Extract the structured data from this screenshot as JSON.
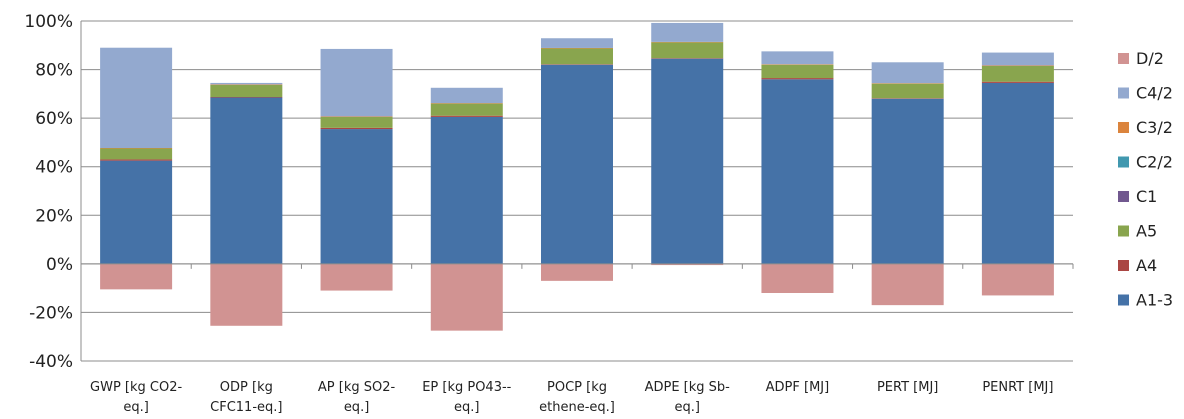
{
  "chart_data": {
    "type": "bar",
    "stacked": true,
    "categories": [
      [
        "GWP [kg CO2-",
        "eq.]"
      ],
      [
        "ODP [kg",
        "CFC11-eq.]"
      ],
      [
        "AP [kg SO2-",
        "eq.]"
      ],
      [
        "EP [kg PO43--",
        "eq.]"
      ],
      [
        "POCP [kg",
        "ethene-eq.]"
      ],
      [
        "ADPE [kg Sb-",
        "eq.]"
      ],
      [
        "ADPF [MJ]"
      ],
      [
        "PERT [MJ]"
      ],
      [
        "PENRT [MJ]"
      ]
    ],
    "ylim": [
      -40,
      100
    ],
    "yticks": [
      -40,
      -20,
      0,
      20,
      40,
      60,
      80,
      100
    ],
    "ytick_labels": [
      "-40%",
      "-20%",
      "0%",
      "20%",
      "40%",
      "60%",
      "80%",
      "100%"
    ],
    "series": [
      {
        "name": "A1-3",
        "color": "#4572a7",
        "values": [
          42.5,
          68.5,
          55.5,
          60.5,
          82,
          84.5,
          76,
          68,
          74.5
        ]
      },
      {
        "name": "A4",
        "color": "#aa4643",
        "values": [
          0.5,
          0.2,
          0.5,
          0.5,
          0.2,
          0.2,
          0.5,
          0.2,
          0.5
        ]
      },
      {
        "name": "A5",
        "color": "#89a54e",
        "values": [
          4.5,
          5,
          4.5,
          5,
          6.5,
          6.5,
          5.5,
          6,
          6.5
        ]
      },
      {
        "name": "C1",
        "color": "#71588f",
        "values": [
          0,
          0,
          0,
          0,
          0,
          0,
          0,
          0,
          0
        ]
      },
      {
        "name": "C2/2",
        "color": "#4198af",
        "values": [
          0,
          0,
          0,
          0,
          0,
          0,
          0,
          0,
          0
        ]
      },
      {
        "name": "C3/2",
        "color": "#db843d",
        "values": [
          0.2,
          0.2,
          0.2,
          0.2,
          0.2,
          0.2,
          0.2,
          0.2,
          0.2
        ]
      },
      {
        "name": "C4/2",
        "color": "#93a9cf",
        "values": [
          41.3,
          0.6,
          27.8,
          6.3,
          4,
          7.8,
          5.3,
          8.6,
          5.3
        ]
      },
      {
        "name": "D/2",
        "color": "#d19392",
        "values": [
          -10.5,
          -25.5,
          -11,
          -27.5,
          -7,
          -0.5,
          -12,
          -17,
          -13
        ]
      }
    ],
    "legend_order": [
      "D/2",
      "C4/2",
      "C3/2",
      "C2/2",
      "C1",
      "A5",
      "A4",
      "A1-3"
    ],
    "legend_position": "right",
    "grid": true
  }
}
